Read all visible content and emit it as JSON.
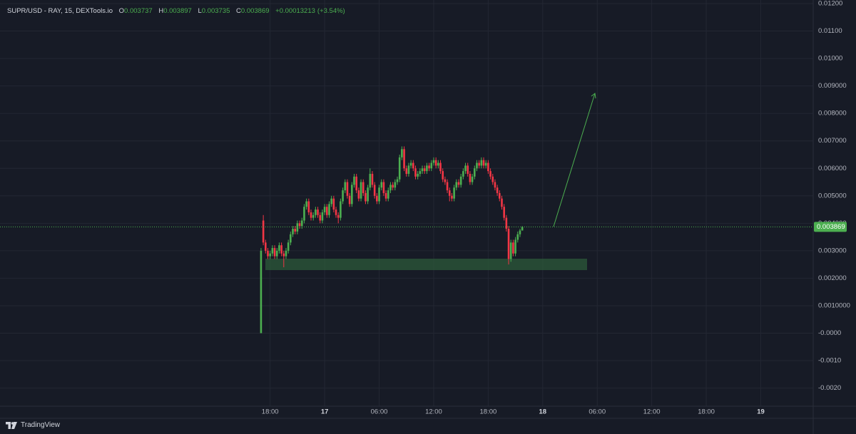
{
  "chart_data": {
    "type": "candlestick",
    "title": "SUPR/USD - RAY, 15, DEXTools.io",
    "ohlc_labels": [
      "O",
      "H",
      "L",
      "C"
    ],
    "change": {
      "value": 0.00013213,
      "label": "+0.00013213"
    },
    "change_pct": {
      "value": 3.54,
      "label": "(+3.54%)"
    },
    "up_color": "#4caf50",
    "down_color": "#f23645",
    "grid": true,
    "last_price_line": true,
    "xlim": [
      -11.73,
      77.77
    ],
    "xticks": [
      {
        "value": 18,
        "label": "18:00"
      },
      {
        "value": 24,
        "label": "17"
      },
      {
        "value": 30,
        "label": "06:00"
      },
      {
        "value": 36,
        "label": "12:00"
      },
      {
        "value": 42,
        "label": "18:00"
      },
      {
        "value": 48,
        "label": "18"
      },
      {
        "value": 54,
        "label": "06:00"
      },
      {
        "value": 60,
        "label": "12:00"
      },
      {
        "value": 66,
        "label": "18:00"
      },
      {
        "value": 72,
        "label": "19"
      }
    ],
    "ylim": [
      -0.00266,
      0.01213
    ],
    "yticks": [
      {
        "value": 0.012,
        "label": "0.01200"
      },
      {
        "value": 0.011,
        "label": "0.01100"
      },
      {
        "value": 0.01,
        "label": "0.01000"
      },
      {
        "value": 0.009,
        "label": "0.009000"
      },
      {
        "value": 0.008,
        "label": "0.008000"
      },
      {
        "value": 0.007,
        "label": "0.007000"
      },
      {
        "value": 0.006,
        "label": "0.006000"
      },
      {
        "value": 0.005,
        "label": "0.005000"
      },
      {
        "value": 0.004,
        "label": "0.004000"
      },
      {
        "value": 0.003,
        "label": "0.003000"
      },
      {
        "value": 0.002,
        "label": "0.002000"
      },
      {
        "value": 0.001,
        "label": "0.0010000"
      },
      {
        "value": 0,
        "label": "-0.0000"
      },
      {
        "value": -0.001,
        "label": "-0.0010"
      },
      {
        "value": -0.002,
        "label": "-0.0020"
      }
    ],
    "x": [
      17,
      17.25,
      17.5,
      17.75,
      18,
      18.25,
      18.5,
      18.75,
      19,
      19.25,
      19.5,
      19.75,
      20,
      20.25,
      20.5,
      20.75,
      21,
      21.25,
      21.5,
      21.75,
      22,
      22.25,
      22.5,
      22.75,
      23,
      23.25,
      23.5,
      23.75,
      24,
      24.25,
      24.5,
      24.75,
      25,
      25.25,
      25.5,
      25.75,
      26,
      26.25,
      26.5,
      26.75,
      27,
      27.25,
      27.5,
      27.75,
      28,
      28.25,
      28.5,
      28.75,
      29,
      29.25,
      29.5,
      29.75,
      30,
      30.25,
      30.5,
      30.75,
      31,
      31.25,
      31.5,
      31.75,
      32,
      32.25,
      32.5,
      32.75,
      33,
      33.25,
      33.5,
      33.75,
      34,
      34.25,
      34.5,
      34.75,
      35,
      35.25,
      35.5,
      35.75,
      36,
      36.25,
      36.5,
      36.75,
      37,
      37.25,
      37.5,
      37.75,
      38,
      38.25,
      38.5,
      38.75,
      39,
      39.25,
      39.5,
      39.75,
      40,
      40.25,
      40.5,
      40.75,
      41,
      41.25,
      41.5,
      41.75,
      42,
      42.25,
      42.5,
      42.75,
      43,
      43.25,
      43.5,
      43.75,
      44,
      44.25,
      44.5,
      44.75,
      45,
      45.25,
      45.5,
      45.75
    ],
    "open": [
      0,
      0.0041,
      0.0033,
      0.003,
      0.0028,
      0.0029,
      0.0031,
      0.0028,
      0.003,
      0.0032,
      0.0029,
      0.0028,
      0.003,
      0.0033,
      0.0036,
      0.0038,
      0.0037,
      0.004,
      0.0039,
      0.0041,
      0.0046,
      0.0048,
      0.0044,
      0.0042,
      0.0043,
      0.0045,
      0.0043,
      0.0041,
      0.0044,
      0.0046,
      0.0043,
      0.0047,
      0.0049,
      0.0045,
      0.0043,
      0.0042,
      0.0048,
      0.0052,
      0.0055,
      0.005,
      0.0047,
      0.0054,
      0.0057,
      0.0052,
      0.0049,
      0.0055,
      0.0051,
      0.0048,
      0.0053,
      0.0058,
      0.0054,
      0.005,
      0.0048,
      0.0053,
      0.0055,
      0.0051,
      0.0049,
      0.0052,
      0.0054,
      0.0053,
      0.0055,
      0.0056,
      0.0064,
      0.0067,
      0.006,
      0.0058,
      0.0061,
      0.0062,
      0.006,
      0.0057,
      0.0058,
      0.0059,
      0.006,
      0.0059,
      0.0061,
      0.006,
      0.0062,
      0.0063,
      0.0061,
      0.0062,
      0.0059,
      0.0056,
      0.0055,
      0.0052,
      0.005,
      0.0049,
      0.0053,
      0.0055,
      0.0054,
      0.0057,
      0.0059,
      0.0061,
      0.0058,
      0.0055,
      0.0057,
      0.006,
      0.0062,
      0.0061,
      0.0063,
      0.0061,
      0.0062,
      0.0059,
      0.0057,
      0.0055,
      0.0053,
      0.0051,
      0.0049,
      0.0046,
      0.0042,
      0.0038,
      0.0027,
      0.0033,
      0.0029,
      0.0034,
      0.0036,
      0.003737
    ],
    "high": [
      0.0031,
      0.0043,
      0.0034,
      0.0031,
      0.003,
      0.0032,
      0.0032,
      0.0031,
      0.0033,
      0.0033,
      0.003,
      0.0031,
      0.0034,
      0.0037,
      0.0039,
      0.0039,
      0.0041,
      0.0041,
      0.0042,
      0.0047,
      0.0049,
      0.0049,
      0.0045,
      0.0044,
      0.0046,
      0.0046,
      0.0044,
      0.0045,
      0.0047,
      0.0047,
      0.0048,
      0.005,
      0.005,
      0.0046,
      0.0044,
      0.0049,
      0.0053,
      0.0056,
      0.0056,
      0.0051,
      0.0055,
      0.0058,
      0.0058,
      0.0053,
      0.0056,
      0.0056,
      0.0052,
      0.0054,
      0.006,
      0.0059,
      0.0055,
      0.0051,
      0.0054,
      0.0056,
      0.0056,
      0.0052,
      0.0053,
      0.0055,
      0.0055,
      0.0056,
      0.0057,
      0.0065,
      0.0068,
      0.0068,
      0.0061,
      0.0062,
      0.0063,
      0.0063,
      0.0061,
      0.0059,
      0.006,
      0.0061,
      0.0061,
      0.0062,
      0.0062,
      0.0063,
      0.0064,
      0.0064,
      0.0063,
      0.0063,
      0.006,
      0.0057,
      0.0056,
      0.0053,
      0.0051,
      0.0054,
      0.0056,
      0.0056,
      0.0058,
      0.006,
      0.0062,
      0.0062,
      0.0059,
      0.0058,
      0.0061,
      0.0063,
      0.0063,
      0.0064,
      0.0064,
      0.0063,
      0.0063,
      0.006,
      0.0058,
      0.0056,
      0.0054,
      0.0052,
      0.005,
      0.0047,
      0.0043,
      0.0039,
      0.0034,
      0.0034,
      0.0035,
      0.0037,
      0.0038,
      0.003897
    ],
    "low": [
      0,
      0.0032,
      0.0029,
      0.0027,
      0.0027,
      0.0028,
      0.0027,
      0.0027,
      0.0029,
      0.0028,
      0.0024,
      0.0027,
      0.0029,
      0.0032,
      0.0035,
      0.0036,
      0.0036,
      0.0038,
      0.0038,
      0.004,
      0.0045,
      0.0043,
      0.0041,
      0.0041,
      0.0042,
      0.0042,
      0.004,
      0.004,
      0.0043,
      0.0042,
      0.0042,
      0.0046,
      0.0044,
      0.0042,
      0.004,
      0.0041,
      0.0047,
      0.0051,
      0.0049,
      0.0046,
      0.0046,
      0.0053,
      0.0051,
      0.0048,
      0.0048,
      0.005,
      0.0047,
      0.0047,
      0.0052,
      0.0053,
      0.0049,
      0.0047,
      0.0047,
      0.0052,
      0.005,
      0.0048,
      0.0048,
      0.0051,
      0.0052,
      0.0052,
      0.0054,
      0.0055,
      0.0063,
      0.0059,
      0.0057,
      0.0057,
      0.006,
      0.0059,
      0.0056,
      0.0056,
      0.0057,
      0.0058,
      0.0058,
      0.0058,
      0.0059,
      0.0059,
      0.0061,
      0.006,
      0.006,
      0.0058,
      0.0055,
      0.0054,
      0.0051,
      0.0048,
      0.0048,
      0.0048,
      0.0052,
      0.0053,
      0.0053,
      0.0056,
      0.0058,
      0.0057,
      0.0054,
      0.0054,
      0.0056,
      0.0059,
      0.006,
      0.006,
      0.006,
      0.006,
      0.0058,
      0.0056,
      0.0054,
      0.0052,
      0.005,
      0.0048,
      0.0045,
      0.0041,
      0.0037,
      0.0025,
      0.0026,
      0.0028,
      0.0028,
      0.0033,
      0.0035,
      0.003735
    ],
    "close": [
      0.003,
      0.0033,
      0.003,
      0.0028,
      0.0029,
      0.0031,
      0.0028,
      0.003,
      0.0032,
      0.0029,
      0.0028,
      0.003,
      0.0033,
      0.0036,
      0.0038,
      0.0037,
      0.004,
      0.0039,
      0.0041,
      0.0046,
      0.0048,
      0.0044,
      0.0042,
      0.0043,
      0.0045,
      0.0043,
      0.0041,
      0.0044,
      0.0046,
      0.0043,
      0.0047,
      0.0049,
      0.0045,
      0.0043,
      0.0042,
      0.0048,
      0.0052,
      0.0055,
      0.005,
      0.0047,
      0.0054,
      0.0057,
      0.0052,
      0.0049,
      0.0055,
      0.0051,
      0.0048,
      0.0053,
      0.0058,
      0.0054,
      0.005,
      0.0048,
      0.0053,
      0.0055,
      0.0051,
      0.0049,
      0.0052,
      0.0054,
      0.0053,
      0.0055,
      0.0056,
      0.0064,
      0.0067,
      0.006,
      0.0058,
      0.0061,
      0.0062,
      0.006,
      0.0057,
      0.0058,
      0.0059,
      0.006,
      0.0059,
      0.0061,
      0.006,
      0.0062,
      0.0063,
      0.0061,
      0.0062,
      0.0059,
      0.0056,
      0.0055,
      0.0052,
      0.005,
      0.0049,
      0.0053,
      0.0055,
      0.0054,
      0.0057,
      0.0059,
      0.0061,
      0.0058,
      0.0055,
      0.0057,
      0.006,
      0.0062,
      0.0061,
      0.0063,
      0.0061,
      0.0062,
      0.0059,
      0.0057,
      0.0055,
      0.0053,
      0.0051,
      0.0049,
      0.0046,
      0.0042,
      0.0038,
      0.0027,
      0.0033,
      0.0029,
      0.0034,
      0.0036,
      0.003737,
      0.003869
    ]
  },
  "branding": "TradingView"
}
